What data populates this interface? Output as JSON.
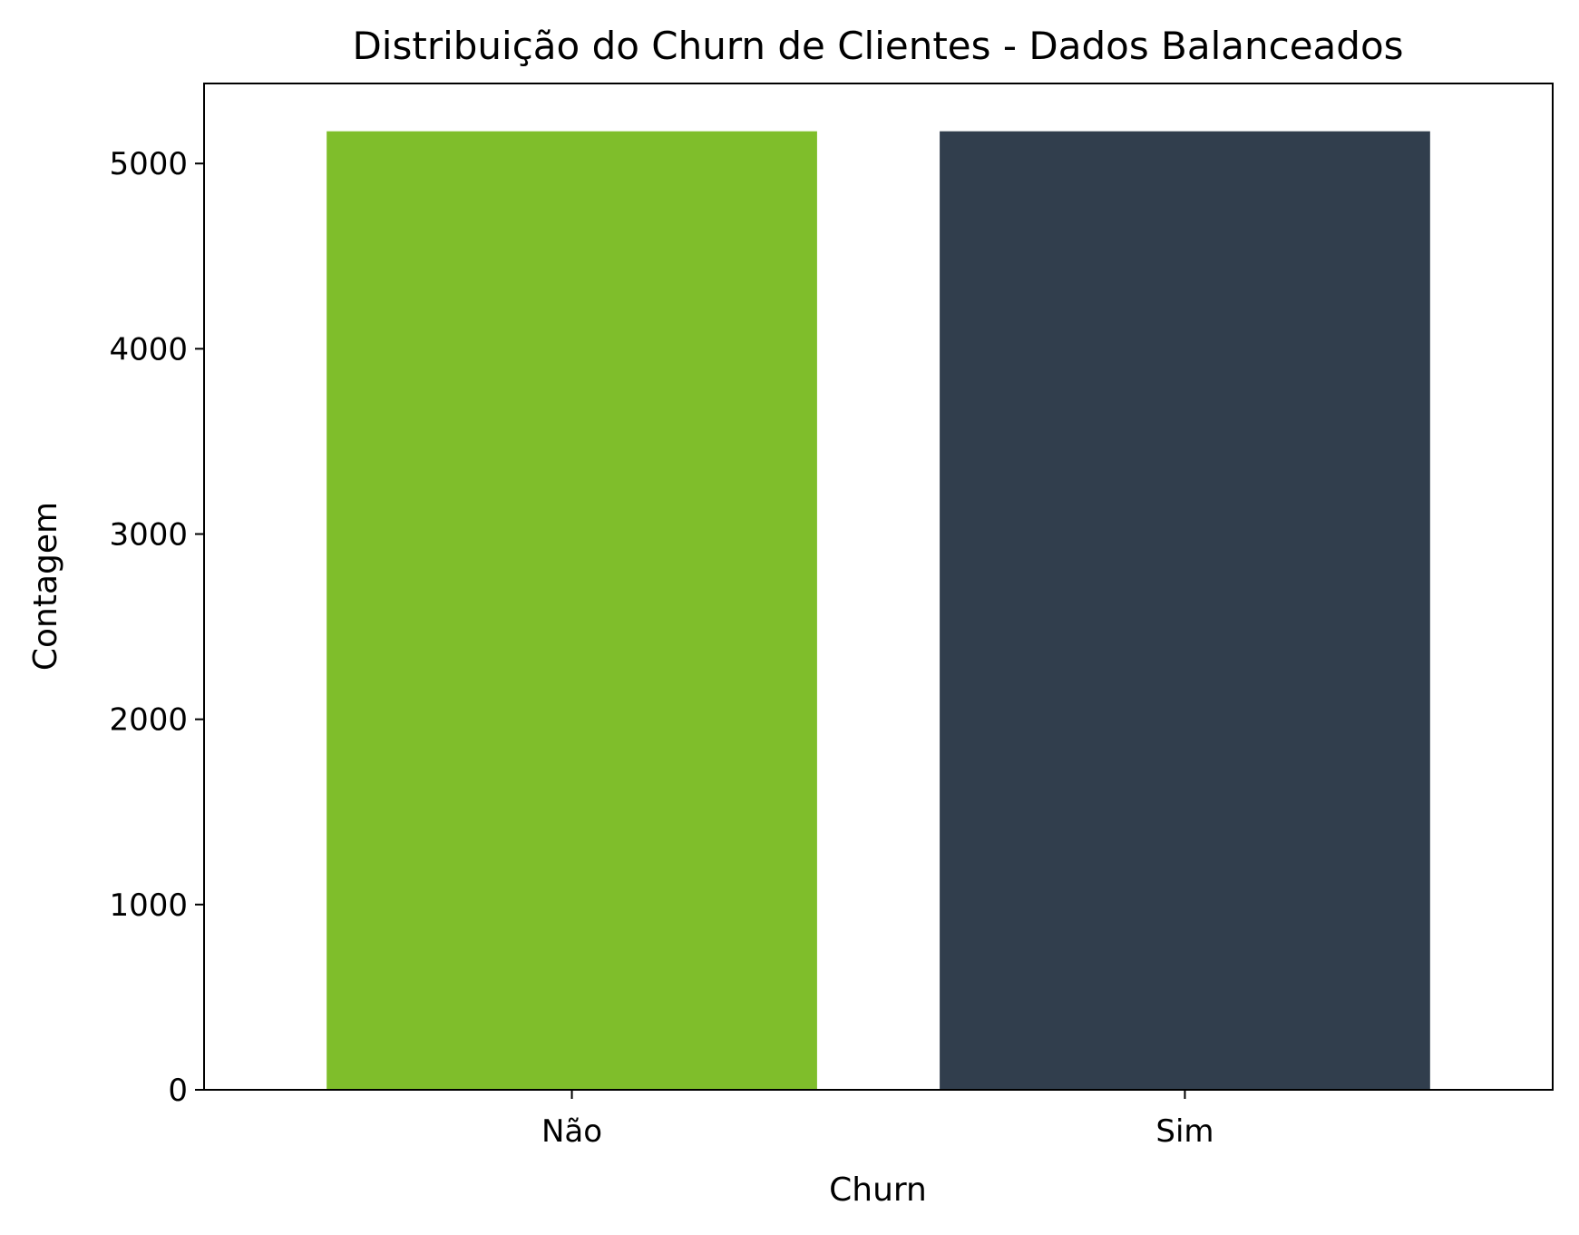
{
  "chart_data": {
    "type": "bar",
    "title": "Distribuição do Churn de Clientes - Dados Balanceados",
    "xlabel": "Churn",
    "ylabel": "Contagem",
    "categories": [
      "Não",
      "Sim"
    ],
    "values": [
      5174,
      5174
    ],
    "colors": [
      "#7fbe2b",
      "#313e4d"
    ],
    "ylim": [
      0,
      5432
    ],
    "yticks": [
      0,
      1000,
      2000,
      3000,
      4000,
      5000
    ],
    "grid": false,
    "legend": false
  }
}
